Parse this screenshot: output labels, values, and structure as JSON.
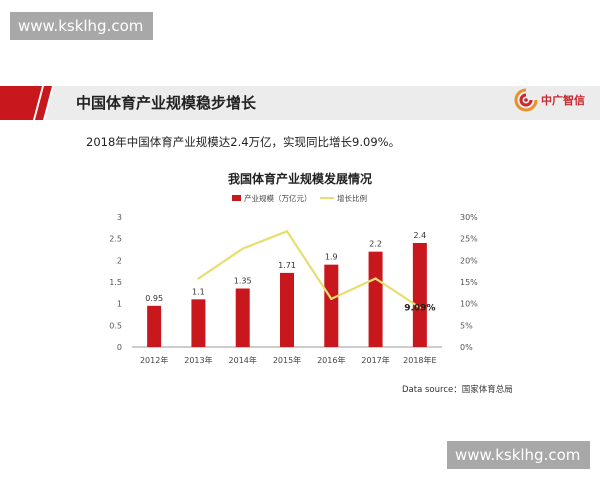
{
  "watermark": {
    "top": "www.ksklhg.com",
    "bottom": "www.ksklhg.com"
  },
  "header": {
    "title": "中国体育产业规模稳步增长",
    "logo_text": "中广智信",
    "logo_icon": "company-logo-icon"
  },
  "subtitle": "2018年中国体育产业规模达2.4万亿，实现同比增长9.09%。",
  "source": "Data source：国家体育总局",
  "colors": {
    "bar": "#c8181e",
    "line": "#e6de6e",
    "header_red": "#c8181e",
    "header_gray": "#ececec"
  },
  "chart_data": {
    "type": "bar",
    "title": "我国体育产业规模发展情况",
    "categories": [
      "2012年",
      "2013年",
      "2014年",
      "2015年",
      "2016年",
      "2017年",
      "2018年E"
    ],
    "series": [
      {
        "name": "产业规模（万亿元）",
        "type": "bar",
        "axis": "left",
        "values": [
          0.95,
          1.1,
          1.35,
          1.71,
          1.9,
          2.2,
          2.4
        ],
        "labels": [
          "0.95",
          "1.1",
          "1.35",
          "1.71",
          "1.9",
          "2.2",
          "2.4"
        ]
      },
      {
        "name": "增长比例",
        "type": "line",
        "axis": "right",
        "values": [
          null,
          15.8,
          22.7,
          26.7,
          11.1,
          15.8,
          9.09
        ],
        "labels": [
          "",
          "",
          "",
          "",
          "",
          "",
          "9.09%"
        ]
      }
    ],
    "y_left": {
      "ylim": [
        0,
        3
      ],
      "ticks": [
        "0",
        "0.5",
        "1",
        "1.5",
        "2",
        "2.5",
        "3"
      ]
    },
    "y_right": {
      "ylim": [
        0,
        30
      ],
      "ticks": [
        "0%",
        "5%",
        "10%",
        "15%",
        "20%",
        "25%",
        "30%"
      ]
    },
    "legend_position": "top",
    "grid": false
  }
}
